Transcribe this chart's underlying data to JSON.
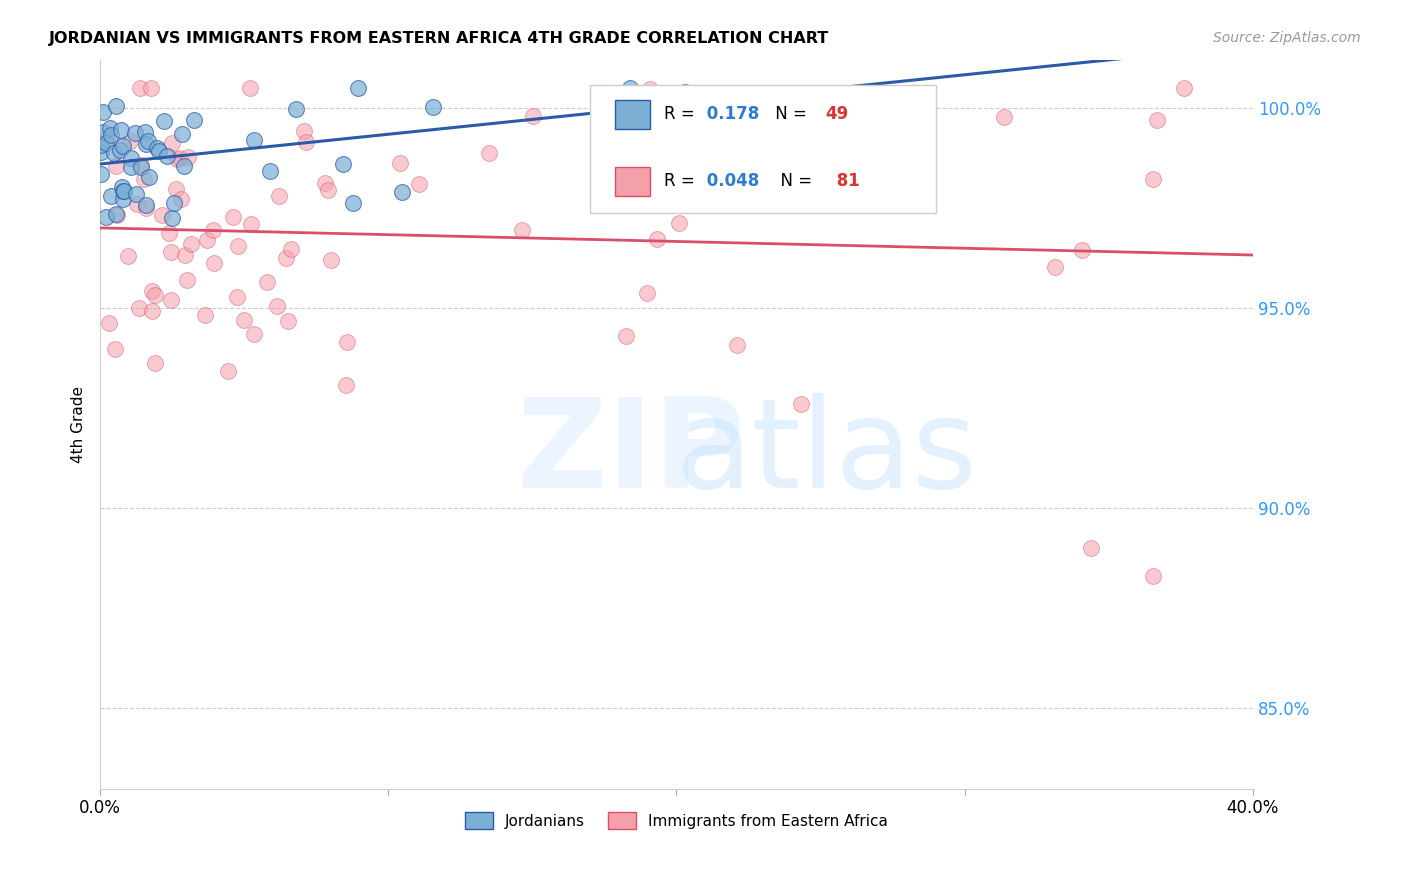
{
  "title": "JORDANIAN VS IMMIGRANTS FROM EASTERN AFRICA 4TH GRADE CORRELATION CHART",
  "source": "Source: ZipAtlas.com",
  "ylabel": "4th Grade",
  "R_blue": 0.178,
  "N_blue": 49,
  "R_pink": 0.048,
  "N_pink": 81,
  "blue_color": "#7BAFD4",
  "pink_color": "#F4A0AA",
  "blue_line_color": "#2B5BA8",
  "pink_line_color": "#D94F6A",
  "legend_label_blue": "Jordanians",
  "legend_label_pink": "Immigrants from Eastern Africa",
  "xmin": 0.0,
  "xmax": 0.4,
  "ymin": 0.83,
  "ymax": 1.012,
  "yticks": [
    0.85,
    0.9,
    0.95,
    1.0
  ],
  "ytick_labels": [
    "85.0%",
    "90.0%",
    "95.0%",
    "100.0%"
  ],
  "blue_R_color": "#2B7DD4",
  "blue_N_color": "#DD3333",
  "pink_R_color": "#2B7DD4",
  "pink_N_color": "#DD3333"
}
